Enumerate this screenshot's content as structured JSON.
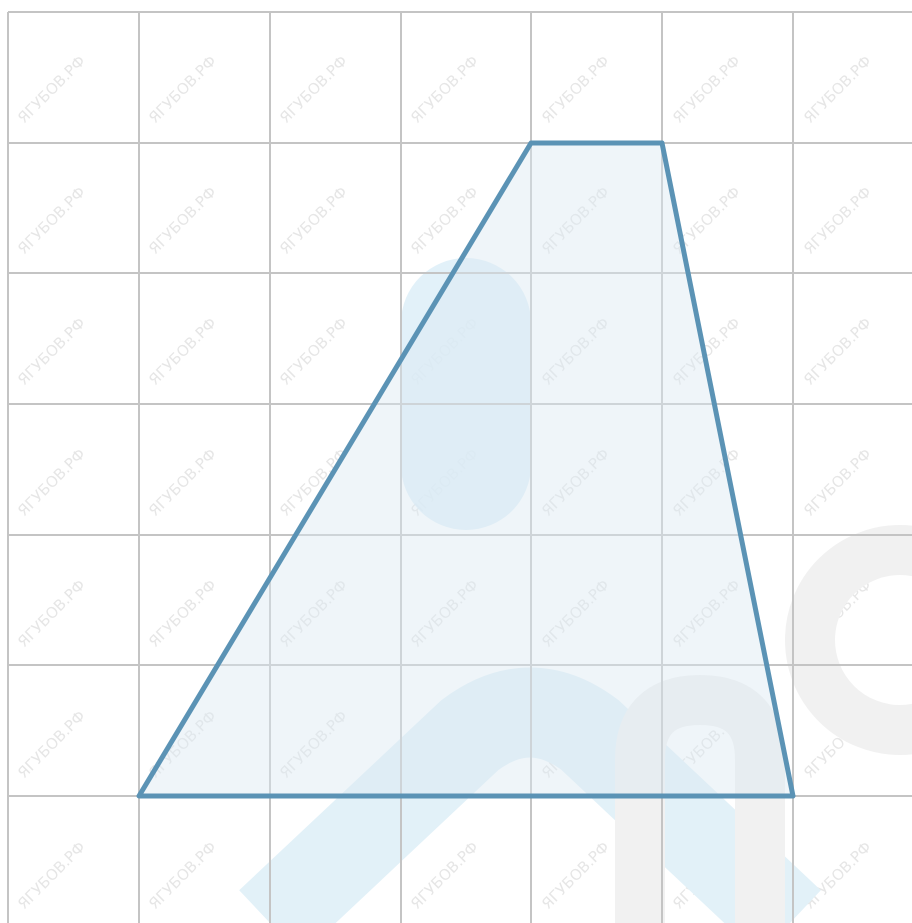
{
  "watermark": "ЯГУБОВ.РФ"
}
